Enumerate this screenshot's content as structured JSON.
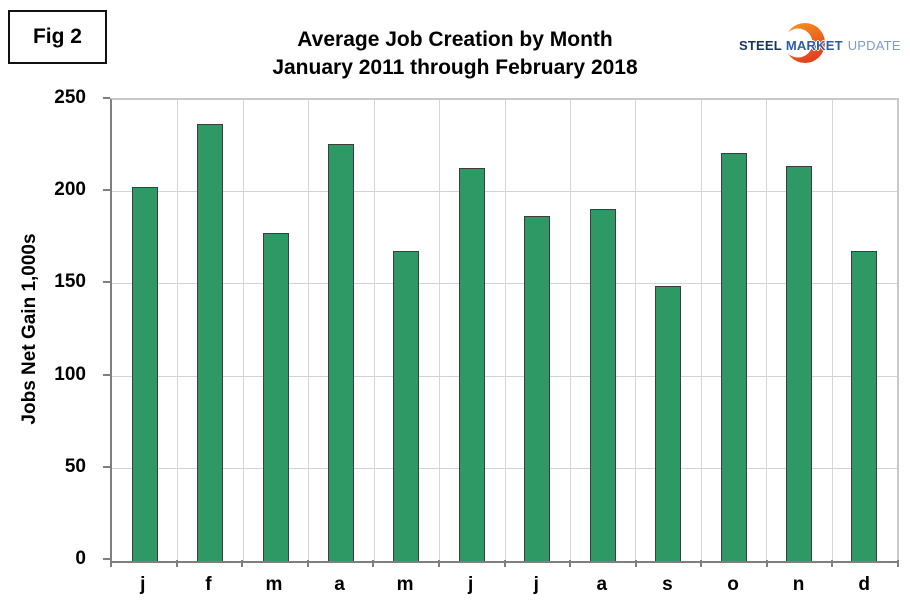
{
  "fig_label": "Fig 2",
  "title": {
    "line1": "Average Job Creation by Month",
    "line2": "January 2011 through February 2018"
  },
  "logo": {
    "word1": "STEEL",
    "word2": "MARKET",
    "word3": "UPDATE",
    "steel_color": "#17365d",
    "market_color": "#2d5ca8",
    "update_color": "#7f9dc9",
    "swoosh_gradient_top": "#f7a823",
    "swoosh_gradient_bottom": "#e03a1e"
  },
  "chart_data": {
    "type": "bar",
    "title": "Average Job Creation by Month — January 2011 through February 2018",
    "categories": [
      "j",
      "f",
      "m",
      "a",
      "m",
      "j",
      "j",
      "a",
      "s",
      "o",
      "n",
      "d"
    ],
    "values": [
      203,
      237,
      178,
      226,
      168,
      213,
      187,
      191,
      149,
      221,
      214,
      168
    ],
    "xlabel": "",
    "ylabel": "Jobs Net Gain 1,000s",
    "ylim": [
      0,
      250
    ],
    "y_ticks": [
      0,
      50,
      100,
      150,
      200,
      250
    ],
    "grid": "horizontal gridlines at each y tick plus vertical category separators",
    "legend": "none",
    "bar_color": "#2f9966",
    "bar_border_color": "#3d3d3d",
    "gridline_color": "#d3d3d3",
    "axis_color": "#7f7f7f"
  }
}
